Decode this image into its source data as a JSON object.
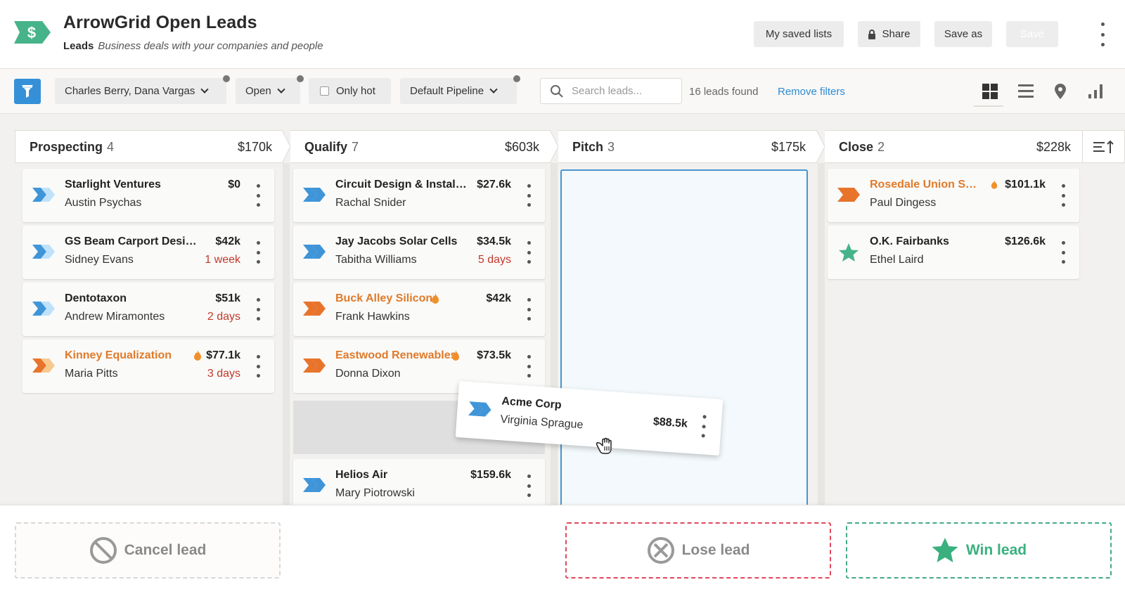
{
  "header": {
    "title": "ArrowGrid Open Leads",
    "subtitle_bold": "Leads",
    "subtitle_italic": "Business deals with your companies and people",
    "logo_symbol": "$",
    "buttons": {
      "saved_lists": "My saved lists",
      "share": "Share",
      "save_as": "Save as",
      "save": "Save"
    }
  },
  "toolbar": {
    "owner_filter": "Charles Berry, Dana Vargas",
    "status_filter": "Open",
    "only_hot": "Only hot",
    "pipeline": "Default Pipeline",
    "search_placeholder": "Search leads...",
    "found": "16 leads found",
    "remove_filters": "Remove filters"
  },
  "columns": [
    {
      "name": "Prospecting",
      "count": "4",
      "amount": "$170k"
    },
    {
      "name": "Qualify",
      "count": "7",
      "amount": "$603k"
    },
    {
      "name": "Pitch",
      "count": "3",
      "amount": "$175k"
    },
    {
      "name": "Close",
      "count": "2",
      "amount": "$228k"
    }
  ],
  "cards": {
    "prospecting": [
      {
        "name": "Starlight Ventures",
        "person": "Austin Psychas",
        "value": "$0",
        "age": ""
      },
      {
        "name": "GS Beam Carport Design ...",
        "person": "Sidney Evans",
        "value": "$42k",
        "age": "1 week"
      },
      {
        "name": "Dentotaxon",
        "person": "Andrew Miramontes",
        "value": "$51k",
        "age": "2 days"
      },
      {
        "name": "Kinney Equalization",
        "person": "Maria Pitts",
        "value": "$77.1k",
        "age": "3 days"
      }
    ],
    "qualify": [
      {
        "name": "Circuit Design & Installa...",
        "person": "Rachal Snider",
        "value": "$27.6k",
        "age": ""
      },
      {
        "name": "Jay Jacobs Solar Cells",
        "person": "Tabitha Williams",
        "value": "$34.5k",
        "age": "5 days"
      },
      {
        "name": "Buck Alley Silicon",
        "person": "Frank Hawkins",
        "value": "$42k",
        "age": ""
      },
      {
        "name": "Eastwood Renewables",
        "person": "Donna Dixon",
        "value": "$73.5k",
        "age": ""
      },
      {
        "name": "Helios Air",
        "person": "Mary Piotrowski",
        "value": "$159.6k",
        "age": ""
      }
    ],
    "close": [
      {
        "name": "Rosedale Union Sch...",
        "person": "Paul Dingess",
        "value": "$101.1k",
        "age": ""
      },
      {
        "name": "O.K. Fairbanks",
        "person": "Ethel Laird",
        "value": "$126.6k",
        "age": ""
      }
    ]
  },
  "dragging": {
    "name": "Acme Corp",
    "person": "Virginia Sprague",
    "value": "$88.5k"
  },
  "footer": {
    "cancel": "Cancel lead",
    "lose": "Lose lead",
    "win": "Win lead"
  },
  "colors": {
    "accent": "#3590d8",
    "hot": "#e07a2a",
    "win": "#3ab07e",
    "lose": "#e0485d"
  }
}
